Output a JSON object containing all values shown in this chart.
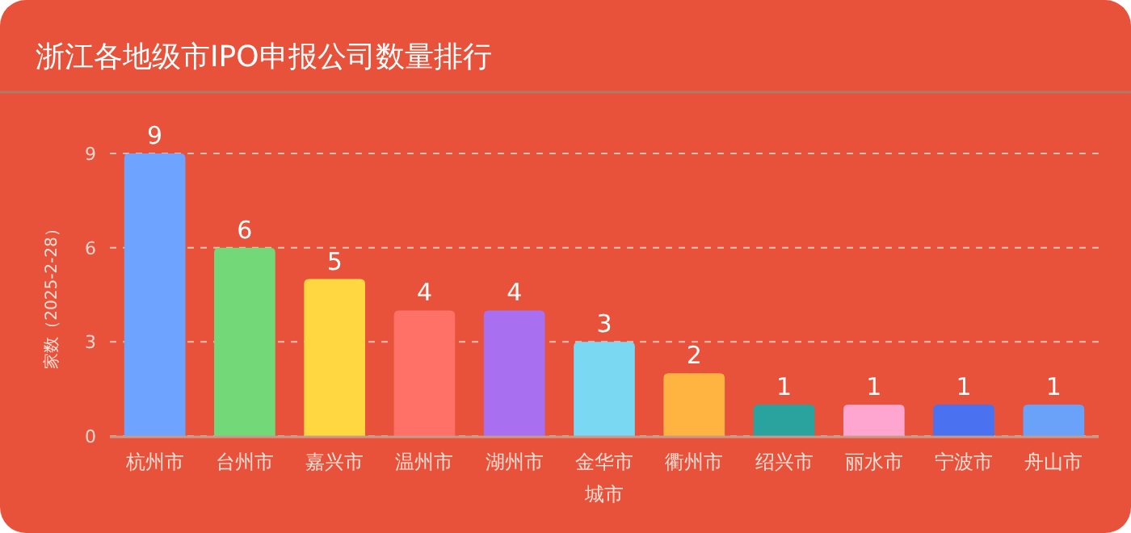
{
  "chart_data": {
    "type": "bar",
    "title": "浙江各地级市IPO申报公司数量排行",
    "xlabel": "城市",
    "ylabel": "家数（2025-2-28）",
    "categories": [
      "杭州市",
      "台州市",
      "嘉兴市",
      "温州市",
      "湖州市",
      "金华市",
      "衢州市",
      "绍兴市",
      "丽水市",
      "宁波市",
      "舟山市"
    ],
    "values": [
      9,
      6,
      5,
      4,
      4,
      3,
      2,
      1,
      1,
      1,
      1
    ],
    "colors": [
      "#6ea4ff",
      "#72d878",
      "#ffd740",
      "#ff7066",
      "#a870f0",
      "#7ad8f2",
      "#ffb340",
      "#2aa39e",
      "#ffa6d0",
      "#4a72f0",
      "#6aa2fa"
    ],
    "ylim": [
      0,
      9
    ],
    "yticks": [
      0,
      3,
      6,
      9
    ],
    "grid": "y",
    "data_labels": true
  }
}
